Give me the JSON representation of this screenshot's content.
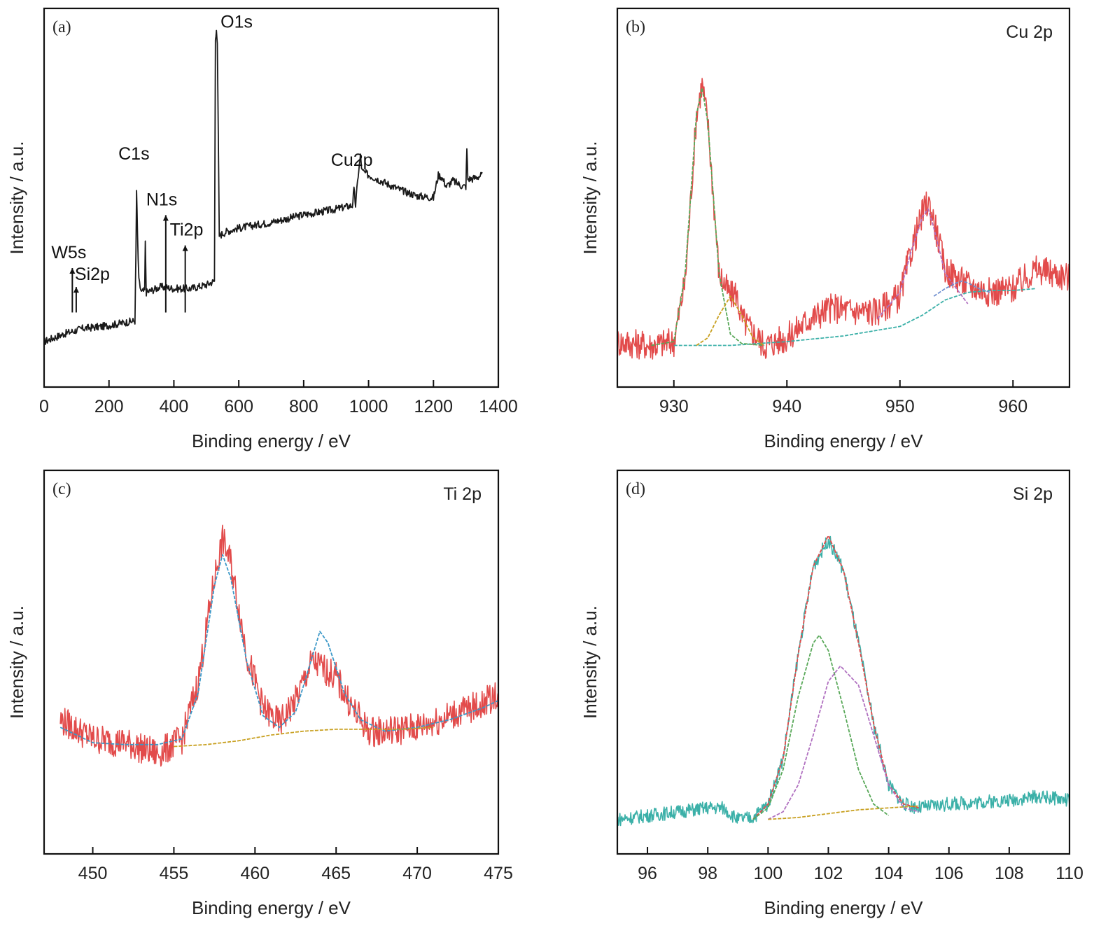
{
  "chart_data": [
    {
      "id": "a",
      "type": "line",
      "panel_label": "(a)",
      "title": "",
      "xlabel": "Binding energy / eV",
      "ylabel": "Intensity / a.u.",
      "xlim": [
        0,
        1400
      ],
      "ylim": [
        0,
        100
      ],
      "xticks": [
        0,
        200,
        400,
        600,
        800,
        1000,
        1200,
        1400
      ],
      "y_tick_labels": false,
      "series": [
        {
          "color": "#1a1a1a",
          "x": [
            0,
            60,
            120,
            180,
            280,
            283,
            285,
            288,
            292,
            300,
            310,
            312,
            315,
            330,
            360,
            400,
            450,
            500,
            525,
            528,
            531,
            534,
            540,
            560,
            600,
            700,
            800,
            900,
            950,
            955,
            960,
            968,
            975,
            980,
            1000,
            1050,
            1100,
            1150,
            1200,
            1215,
            1225,
            1240,
            1260,
            1290,
            1300,
            1303,
            1306,
            1320,
            1350
          ],
          "y": [
            12,
            14,
            15.5,
            16,
            17.5,
            35,
            52,
            40,
            28,
            25,
            25.5,
            38,
            25,
            25.5,
            26.5,
            26,
            26,
            27,
            28,
            92,
            95,
            90,
            40,
            41,
            42,
            43.5,
            45.5,
            47,
            48,
            52,
            48,
            56,
            61,
            57,
            56,
            54,
            52,
            50.5,
            50,
            56,
            55.5,
            53,
            54.5,
            53,
            53,
            63,
            55,
            55,
            56
          ]
        }
      ],
      "annotations": [
        {
          "text": "W5s",
          "x": 87,
          "y": 34
        },
        {
          "text": "Si2p",
          "x": 99,
          "y": 29
        },
        {
          "text": "C1s",
          "x": 285,
          "y": 56
        },
        {
          "text": "N1s",
          "x": 375,
          "y": 48
        },
        {
          "text": "Ti2p",
          "x": 435,
          "y": 40
        },
        {
          "text": "O1s",
          "x": 531,
          "y": 96
        },
        {
          "text": "Cu2p",
          "x": 953,
          "y": 54
        }
      ]
    },
    {
      "id": "b",
      "type": "line",
      "panel_label": "(b)",
      "title": "Cu 2p",
      "xlabel": "Binding energy / eV",
      "ylabel": "Intensity / a.u.",
      "xlim": [
        925,
        965
      ],
      "ylim": [
        0,
        100
      ],
      "xticks": [
        930,
        940,
        950,
        960
      ],
      "y_tick_labels": false,
      "series": [
        {
          "color": "#e24b4b",
          "x": [
            925,
            928,
            930,
            931,
            932,
            932.5,
            933,
            934,
            935,
            935.5,
            936,
            938,
            940,
            942,
            944,
            946,
            948,
            950,
            951,
            952,
            952.5,
            953,
            954,
            956,
            958,
            960,
            962,
            965
          ],
          "y": [
            12,
            11,
            12,
            28,
            72,
            80,
            70,
            30,
            24,
            25,
            18,
            11,
            13,
            18,
            21,
            20,
            20,
            24,
            36,
            46,
            49,
            44,
            31,
            27,
            25,
            26,
            31,
            29
          ]
        },
        {
          "color": "#3bb0a8",
          "x": [
            930,
            935,
            940,
            945,
            950,
            952,
            954,
            956,
            958,
            960,
            962
          ],
          "y": [
            11,
            11,
            12,
            13.5,
            16,
            19,
            23,
            25,
            25.5,
            25.5,
            26
          ]
        },
        {
          "color": "#58a858",
          "x": [
            928,
            930,
            931,
            932,
            932.5,
            933,
            934,
            935,
            936,
            938
          ],
          "y": [
            11,
            12,
            30,
            72,
            79,
            70,
            30,
            14,
            11.5,
            11
          ]
        },
        {
          "color": "#c8a020",
          "x": [
            932,
            933,
            934,
            935,
            936,
            937,
            938
          ],
          "y": [
            11,
            13,
            19,
            24,
            19,
            13,
            11
          ]
        },
        {
          "color": "#b070c0",
          "x": [
            948,
            950,
            951,
            952,
            952.5,
            953,
            954,
            956
          ],
          "y": [
            18,
            25,
            36,
            45,
            47,
            42,
            30,
            22
          ]
        },
        {
          "color": "#7090d0",
          "x": [
            953,
            954,
            955,
            955.5,
            956,
            957,
            958
          ],
          "y": [
            24,
            26,
            27.5,
            28,
            27.5,
            26,
            25
          ]
        }
      ]
    },
    {
      "id": "c",
      "type": "line",
      "panel_label": "(c)",
      "title": "Ti 2p",
      "xlabel": "Binding energy / eV",
      "ylabel": "Intensity / a.u.",
      "xlim": [
        447,
        475
      ],
      "ylim": [
        0,
        100
      ],
      "xticks": [
        450,
        455,
        460,
        465,
        470,
        475
      ],
      "y_tick_labels": false,
      "series": [
        {
          "color": "#e24b4b",
          "x": [
            448,
            450,
            452,
            454,
            455.5,
            456.5,
            457.5,
            458,
            458.5,
            459.5,
            460.5,
            461.5,
            462.5,
            463.5,
            464,
            465,
            466,
            467,
            468,
            470,
            472,
            474,
            475
          ],
          "y": [
            35,
            30,
            29,
            26,
            30,
            45,
            72,
            82,
            76,
            52,
            38,
            34,
            40,
            50,
            49,
            46,
            38,
            32,
            32,
            33,
            36,
            39,
            42
          ]
        },
        {
          "color": "#3b98c8",
          "x": [
            448,
            450,
            452,
            454,
            455.5,
            456.5,
            457.5,
            458,
            458.5,
            459.5,
            460.5,
            461.5,
            462.5,
            463.5,
            464,
            464.5,
            465.5,
            466.5,
            468,
            470,
            472,
            474,
            475
          ],
          "y": [
            33,
            29,
            28.5,
            28.5,
            30,
            42,
            70,
            78,
            72,
            50,
            36,
            33,
            37,
            51,
            58,
            55,
            42,
            35,
            32,
            33,
            35,
            38,
            40
          ]
        },
        {
          "color": "#c8a020",
          "x": [
            455,
            457,
            459,
            461,
            463,
            465,
            467,
            469,
            471
          ],
          "y": [
            28,
            28.5,
            29.5,
            31,
            32,
            32.5,
            32.5,
            32.5,
            33
          ]
        }
      ]
    },
    {
      "id": "d",
      "type": "line",
      "panel_label": "(d)",
      "title": "Si 2p",
      "xlabel": "Binding energy / eV",
      "ylabel": "Intensity / a.u.",
      "xlim": [
        95,
        110
      ],
      "ylim": [
        0,
        100
      ],
      "xticks": [
        96,
        98,
        100,
        102,
        104,
        106,
        108,
        110
      ],
      "y_tick_labels": false,
      "series": [
        {
          "color": "#3bb0a8",
          "x": [
            95,
            96,
            97,
            98,
            98.5,
            99,
            99.5,
            100,
            100.5,
            101,
            101.5,
            102,
            102.5,
            103,
            103.5,
            104,
            104.5,
            105,
            106,
            107,
            108,
            109,
            110
          ],
          "y": [
            9,
            10,
            11,
            12,
            12,
            9,
            9.5,
            13,
            25,
            52,
            75,
            82,
            74,
            55,
            34,
            18,
            13,
            12,
            13,
            13.5,
            14,
            15,
            14
          ]
        },
        {
          "color": "#e24b4b",
          "x": [
            99.5,
            100,
            100.5,
            101,
            101.5,
            102,
            102.5,
            103,
            103.5,
            104,
            104.5,
            105
          ],
          "y": [
            9,
            13,
            25,
            52,
            75,
            83,
            74,
            55,
            34,
            18,
            13,
            12
          ]
        },
        {
          "color": "#58a858",
          "x": [
            99.5,
            100,
            100.5,
            101,
            101.5,
            101.7,
            102,
            102.5,
            103,
            103.5,
            104
          ],
          "y": [
            9,
            12,
            22,
            41,
            55,
            57,
            53,
            38,
            22,
            13,
            10
          ]
        },
        {
          "color": "#b070c0",
          "x": [
            100,
            100.5,
            101,
            101.5,
            102,
            102.4,
            103,
            103.5,
            104,
            104.5,
            105
          ],
          "y": [
            9,
            11,
            18,
            31,
            45,
            49,
            44,
            31,
            18,
            12,
            11
          ]
        },
        {
          "color": "#c8a020",
          "x": [
            100,
            101,
            102,
            103,
            104,
            105
          ],
          "y": [
            9,
            9.5,
            10.5,
            11.5,
            12,
            12.5
          ]
        }
      ]
    }
  ]
}
